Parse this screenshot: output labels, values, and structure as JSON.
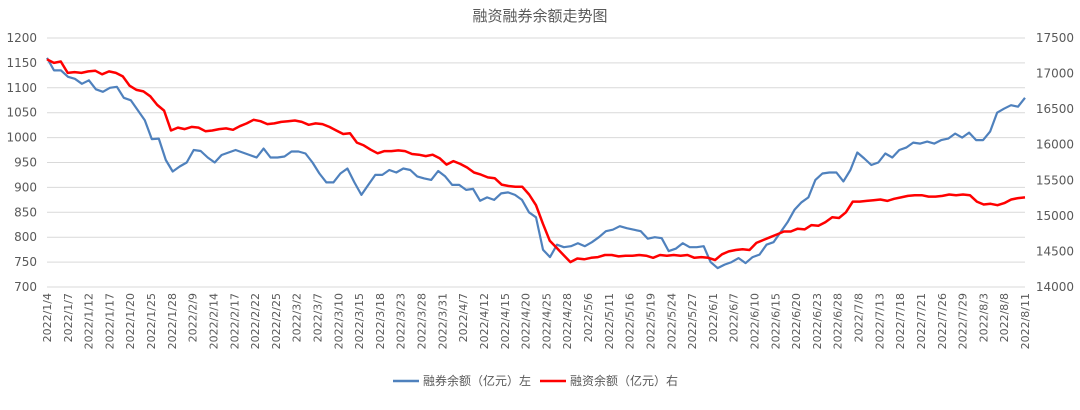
{
  "chart_data": {
    "type": "line",
    "title": "融资融券余额走势图",
    "grid": true,
    "legend_position": "bottom",
    "y_left": {
      "range": [
        700,
        1200
      ],
      "ticks": [
        700,
        750,
        800,
        850,
        900,
        950,
        1000,
        1050,
        1100,
        1150,
        1200
      ]
    },
    "y_right": {
      "range": [
        14000,
        17500
      ],
      "ticks": [
        14000,
        14500,
        15000,
        15500,
        16000,
        16500,
        17000,
        17500
      ]
    },
    "x_tick_labels": [
      "2022/1/4",
      "2022/1/7",
      "2022/1/12",
      "2022/1/17",
      "2022/1/20",
      "2022/1/25",
      "2022/1/28",
      "2022/2/9",
      "2022/2/14",
      "2022/2/17",
      "2022/2/22",
      "2022/2/25",
      "2022/3/2",
      "2022/3/7",
      "2022/3/10",
      "2022/3/15",
      "2022/3/18",
      "2022/3/23",
      "2022/3/28",
      "2022/3/31",
      "2022/4/7",
      "2022/4/12",
      "2022/4/15",
      "2022/4/20",
      "2022/4/25",
      "2022/4/28",
      "2022/5/6",
      "2022/5/11",
      "2022/5/16",
      "2022/5/19",
      "2022/5/24",
      "2022/5/27",
      "2022/6/1",
      "2022/6/7",
      "2022/6/10",
      "2022/6/15",
      "2022/6/20",
      "2022/6/23",
      "2022/6/28",
      "2022/7/8",
      "2022/7/13",
      "2022/7/18",
      "2022/7/21",
      "2022/7/26",
      "2022/7/29",
      "2022/8/3",
      "2022/8/8",
      "2022/8/11"
    ],
    "series": [
      {
        "name": "融券余额（亿元）左",
        "axis": "left",
        "color": "#4f81bd",
        "values": [
          1160,
          1135,
          1135,
          1122,
          1118,
          1108,
          1115,
          1097,
          1092,
          1100,
          1102,
          1080,
          1075,
          1055,
          1035,
          997,
          998,
          955,
          932,
          942,
          950,
          975,
          973,
          960,
          950,
          965,
          970,
          975,
          970,
          965,
          960,
          978,
          960,
          960,
          962,
          972,
          972,
          968,
          950,
          928,
          910,
          910,
          928,
          938,
          910,
          885,
          905,
          925,
          925,
          935,
          930,
          938,
          935,
          922,
          918,
          915,
          933,
          922,
          905,
          905,
          895,
          897,
          873,
          880,
          875,
          888,
          890,
          885,
          875,
          850,
          840,
          775,
          760,
          785,
          780,
          782,
          788,
          782,
          790,
          800,
          812,
          815,
          822,
          818,
          815,
          812,
          797,
          800,
          798,
          772,
          777,
          788,
          780,
          780,
          782,
          750,
          738,
          745,
          750,
          758,
          748,
          760,
          765,
          785,
          790,
          810,
          830,
          855,
          870,
          880,
          915,
          928,
          930,
          930,
          912,
          935,
          970,
          958,
          945,
          950,
          968,
          960,
          975,
          980,
          990,
          988,
          992,
          988,
          995,
          998,
          1008,
          1000,
          1010,
          995,
          995,
          1012,
          1050,
          1058,
          1065,
          1062,
          1080
        ]
      },
      {
        "name": "融资余额（亿元）右",
        "axis": "right",
        "color": "#ff0000",
        "values": [
          17200,
          17150,
          17170,
          17010,
          17020,
          17010,
          17030,
          17040,
          16990,
          17030,
          17010,
          16960,
          16830,
          16770,
          16750,
          16680,
          16560,
          16480,
          16200,
          16240,
          16220,
          16250,
          16240,
          16190,
          16200,
          16220,
          16230,
          16210,
          16260,
          16300,
          16350,
          16330,
          16290,
          16300,
          16320,
          16330,
          16340,
          16320,
          16280,
          16300,
          16290,
          16250,
          16200,
          16150,
          16160,
          16030,
          15990,
          15930,
          15880,
          15910,
          15910,
          15920,
          15910,
          15870,
          15860,
          15840,
          15860,
          15810,
          15720,
          15770,
          15730,
          15680,
          15610,
          15580,
          15540,
          15530,
          15440,
          15420,
          15410,
          15410,
          15300,
          15150,
          14890,
          14650,
          14550,
          14450,
          14350,
          14400,
          14390,
          14410,
          14420,
          14450,
          14450,
          14430,
          14440,
          14440,
          14450,
          14440,
          14410,
          14450,
          14440,
          14450,
          14440,
          14450,
          14410,
          14420,
          14410,
          14380,
          14460,
          14500,
          14520,
          14530,
          14520,
          14620,
          14660,
          14700,
          14740,
          14780,
          14780,
          14820,
          14810,
          14870,
          14860,
          14910,
          14980,
          14970,
          15050,
          15200,
          15200,
          15210,
          15220,
          15230,
          15210,
          15240,
          15260,
          15280,
          15290,
          15290,
          15270,
          15270,
          15280,
          15300,
          15290,
          15300,
          15290,
          15200,
          15160,
          15170,
          15150,
          15180,
          15230,
          15250,
          15260
        ]
      }
    ]
  }
}
